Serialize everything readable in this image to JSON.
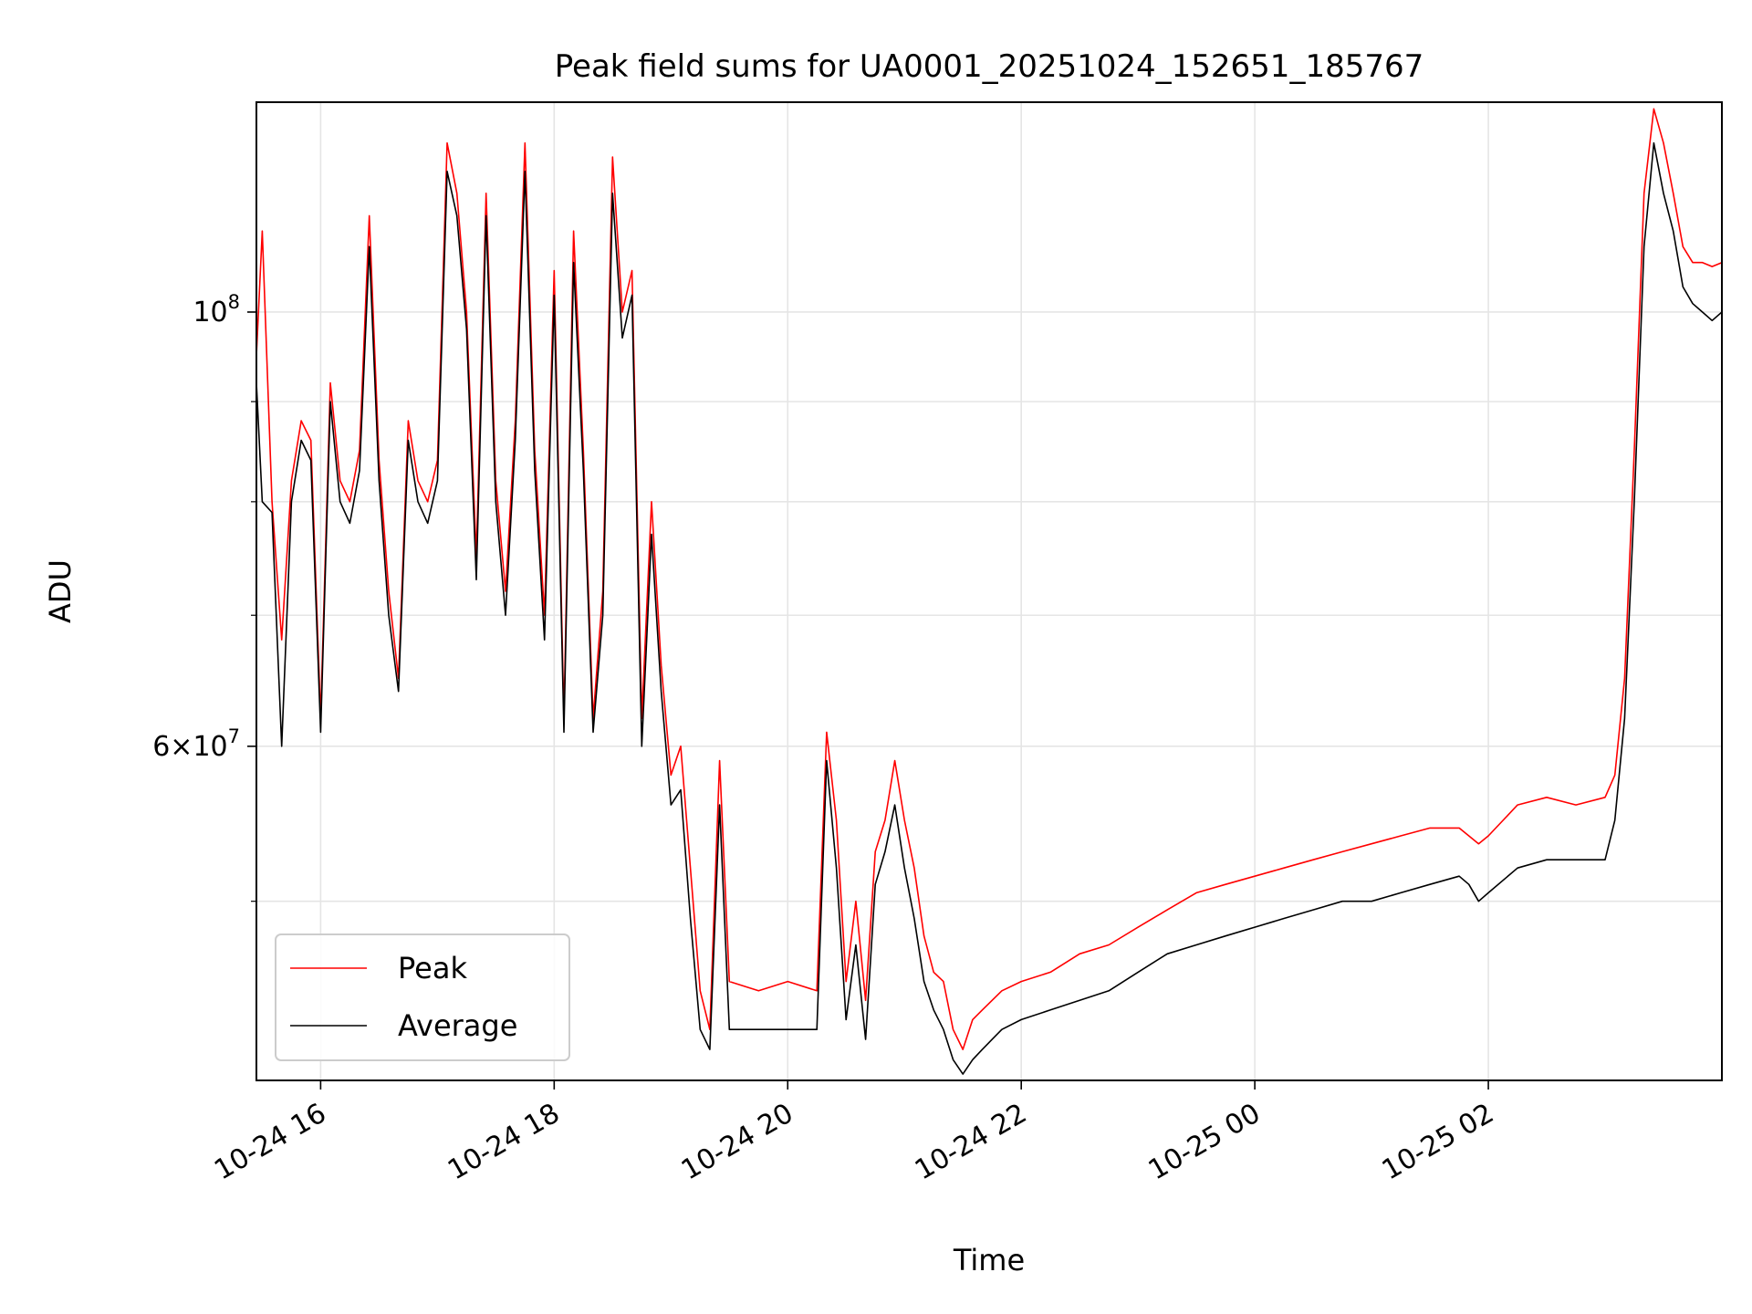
{
  "chart_data": {
    "type": "line",
    "title": "Peak field sums for UA0001_20251024_152651_185767",
    "xlabel": "Time",
    "ylabel": "ADU",
    "y_scale": "log",
    "grid": true,
    "legend_position": "bottom-left",
    "xlim": [
      "2025-10-24 15:27",
      "2025-10-25 04:00"
    ],
    "ylim": [
      40500000,
      128000000
    ],
    "x_ticks": [
      {
        "value": "2025-10-24 16:00",
        "label": "10-24 16"
      },
      {
        "value": "2025-10-24 18:00",
        "label": "10-24 18"
      },
      {
        "value": "2025-10-24 20:00",
        "label": "10-24 20"
      },
      {
        "value": "2025-10-24 22:00",
        "label": "10-24 22"
      },
      {
        "value": "2025-10-25 00:00",
        "label": "10-25 00"
      },
      {
        "value": "2025-10-25 02:00",
        "label": "10-25 02"
      }
    ],
    "y_ticks_labeled": [
      {
        "value": 60000000,
        "label_base": "6×10",
        "label_exp": "7"
      },
      {
        "value": 100000000,
        "label_base": "10",
        "label_exp": "8"
      }
    ],
    "y_minor_ticks": [
      50000000,
      70000000,
      80000000,
      90000000
    ],
    "colors": {
      "peak": "#ff0000",
      "average": "#000000",
      "grid": "#e5e5e5"
    },
    "series": [
      {
        "name": "Peak",
        "color": "#ff0000",
        "x": [
          "2025-10-24 15:27",
          "2025-10-24 15:30",
          "2025-10-24 15:35",
          "2025-10-24 15:40",
          "2025-10-24 15:45",
          "2025-10-24 15:50",
          "2025-10-24 15:55",
          "2025-10-24 16:00",
          "2025-10-24 16:05",
          "2025-10-24 16:10",
          "2025-10-24 16:15",
          "2025-10-24 16:20",
          "2025-10-24 16:25",
          "2025-10-24 16:30",
          "2025-10-24 16:35",
          "2025-10-24 16:40",
          "2025-10-24 16:45",
          "2025-10-24 16:50",
          "2025-10-24 16:55",
          "2025-10-24 17:00",
          "2025-10-24 17:05",
          "2025-10-24 17:10",
          "2025-10-24 17:15",
          "2025-10-24 17:20",
          "2025-10-24 17:25",
          "2025-10-24 17:30",
          "2025-10-24 17:35",
          "2025-10-24 17:40",
          "2025-10-24 17:45",
          "2025-10-24 17:50",
          "2025-10-24 17:55",
          "2025-10-24 18:00",
          "2025-10-24 18:05",
          "2025-10-24 18:10",
          "2025-10-24 18:15",
          "2025-10-24 18:20",
          "2025-10-24 18:25",
          "2025-10-24 18:30",
          "2025-10-24 18:35",
          "2025-10-24 18:40",
          "2025-10-24 18:45",
          "2025-10-24 18:50",
          "2025-10-24 18:55",
          "2025-10-24 19:00",
          "2025-10-24 19:05",
          "2025-10-24 19:10",
          "2025-10-24 19:15",
          "2025-10-24 19:20",
          "2025-10-24 19:25",
          "2025-10-24 19:30",
          "2025-10-24 19:45",
          "2025-10-24 20:00",
          "2025-10-24 20:15",
          "2025-10-24 20:20",
          "2025-10-24 20:25",
          "2025-10-24 20:30",
          "2025-10-24 20:35",
          "2025-10-24 20:40",
          "2025-10-24 20:45",
          "2025-10-24 20:50",
          "2025-10-24 20:55",
          "2025-10-24 21:00",
          "2025-10-24 21:05",
          "2025-10-24 21:10",
          "2025-10-24 21:15",
          "2025-10-24 21:20",
          "2025-10-24 21:25",
          "2025-10-24 21:30",
          "2025-10-24 21:35",
          "2025-10-24 21:40",
          "2025-10-24 21:45",
          "2025-10-24 21:50",
          "2025-10-24 22:00",
          "2025-10-24 22:15",
          "2025-10-24 22:30",
          "2025-10-24 22:45",
          "2025-10-24 23:00",
          "2025-10-24 23:15",
          "2025-10-24 23:30",
          "2025-10-24 23:45",
          "2025-10-25 00:00",
          "2025-10-25 00:15",
          "2025-10-25 00:30",
          "2025-10-25 00:45",
          "2025-10-25 01:00",
          "2025-10-25 01:15",
          "2025-10-25 01:30",
          "2025-10-25 01:45",
          "2025-10-25 01:50",
          "2025-10-25 01:55",
          "2025-10-25 02:00",
          "2025-10-25 02:15",
          "2025-10-25 02:30",
          "2025-10-25 02:45",
          "2025-10-25 03:00",
          "2025-10-25 03:05",
          "2025-10-25 03:10",
          "2025-10-25 03:15",
          "2025-10-25 03:20",
          "2025-10-25 03:25",
          "2025-10-25 03:30",
          "2025-10-25 03:35",
          "2025-10-25 03:40",
          "2025-10-25 03:45",
          "2025-10-25 03:50",
          "2025-10-25 03:55",
          "2025-10-25 04:00"
        ],
        "y": [
          95000000,
          110000000,
          80000000,
          68000000,
          82000000,
          88000000,
          86000000,
          62000000,
          92000000,
          82000000,
          80000000,
          85000000,
          112000000,
          84000000,
          72000000,
          65000000,
          88000000,
          82000000,
          80000000,
          84000000,
          122000000,
          115000000,
          100000000,
          75000000,
          115000000,
          82000000,
          72000000,
          88000000,
          122000000,
          85000000,
          70000000,
          105000000,
          62000000,
          110000000,
          85000000,
          62000000,
          72000000,
          120000000,
          100000000,
          105000000,
          62000000,
          80000000,
          66000000,
          58000000,
          60000000,
          52000000,
          45000000,
          43000000,
          59000000,
          45500000,
          45000000,
          45500000,
          45000000,
          61000000,
          55000000,
          45500000,
          50000000,
          44500000,
          53000000,
          55000000,
          59000000,
          55000000,
          52000000,
          48000000,
          46000000,
          45500000,
          43000000,
          42000000,
          43500000,
          44000000,
          44500000,
          45000000,
          45500000,
          46000000,
          47000000,
          47500000,
          48500000,
          49500000,
          50500000,
          51000000,
          51500000,
          52000000,
          52500000,
          53000000,
          53500000,
          54000000,
          54500000,
          54500000,
          54000000,
          53500000,
          54000000,
          56000000,
          56500000,
          56000000,
          56500000,
          58000000,
          65000000,
          85000000,
          115000000,
          127000000,
          122000000,
          115000000,
          108000000,
          106000000,
          106000000,
          105500000,
          106000000
        ],
        "annotations": []
      },
      {
        "name": "Average",
        "color": "#000000",
        "x": [
          "2025-10-24 15:27",
          "2025-10-24 15:30",
          "2025-10-24 15:35",
          "2025-10-24 15:40",
          "2025-10-24 15:45",
          "2025-10-24 15:50",
          "2025-10-24 15:55",
          "2025-10-24 16:00",
          "2025-10-24 16:05",
          "2025-10-24 16:10",
          "2025-10-24 16:15",
          "2025-10-24 16:20",
          "2025-10-24 16:25",
          "2025-10-24 16:30",
          "2025-10-24 16:35",
          "2025-10-24 16:40",
          "2025-10-24 16:45",
          "2025-10-24 16:50",
          "2025-10-24 16:55",
          "2025-10-24 17:00",
          "2025-10-24 17:05",
          "2025-10-24 17:10",
          "2025-10-24 17:15",
          "2025-10-24 17:20",
          "2025-10-24 17:25",
          "2025-10-24 17:30",
          "2025-10-24 17:35",
          "2025-10-24 17:40",
          "2025-10-24 17:45",
          "2025-10-24 17:50",
          "2025-10-24 17:55",
          "2025-10-24 18:00",
          "2025-10-24 18:05",
          "2025-10-24 18:10",
          "2025-10-24 18:15",
          "2025-10-24 18:20",
          "2025-10-24 18:25",
          "2025-10-24 18:30",
          "2025-10-24 18:35",
          "2025-10-24 18:40",
          "2025-10-24 18:45",
          "2025-10-24 18:50",
          "2025-10-24 18:55",
          "2025-10-24 19:00",
          "2025-10-24 19:05",
          "2025-10-24 19:10",
          "2025-10-24 19:15",
          "2025-10-24 19:20",
          "2025-10-24 19:25",
          "2025-10-24 19:30",
          "2025-10-24 19:45",
          "2025-10-24 20:00",
          "2025-10-24 20:15",
          "2025-10-24 20:20",
          "2025-10-24 20:25",
          "2025-10-24 20:30",
          "2025-10-24 20:35",
          "2025-10-24 20:40",
          "2025-10-24 20:45",
          "2025-10-24 20:50",
          "2025-10-24 20:55",
          "2025-10-24 21:00",
          "2025-10-24 21:05",
          "2025-10-24 21:10",
          "2025-10-24 21:15",
          "2025-10-24 21:20",
          "2025-10-24 21:25",
          "2025-10-24 21:30",
          "2025-10-24 21:35",
          "2025-10-24 21:40",
          "2025-10-24 21:45",
          "2025-10-24 21:50",
          "2025-10-24 22:00",
          "2025-10-24 22:15",
          "2025-10-24 22:30",
          "2025-10-24 22:45",
          "2025-10-24 23:00",
          "2025-10-24 23:15",
          "2025-10-24 23:30",
          "2025-10-24 23:45",
          "2025-10-25 00:00",
          "2025-10-25 00:15",
          "2025-10-25 00:30",
          "2025-10-25 00:45",
          "2025-10-25 01:00",
          "2025-10-25 01:15",
          "2025-10-25 01:30",
          "2025-10-25 01:45",
          "2025-10-25 01:50",
          "2025-10-25 01:55",
          "2025-10-25 02:00",
          "2025-10-25 02:15",
          "2025-10-25 02:30",
          "2025-10-25 02:45",
          "2025-10-25 03:00",
          "2025-10-25 03:05",
          "2025-10-25 03:10",
          "2025-10-25 03:15",
          "2025-10-25 03:20",
          "2025-10-25 03:25",
          "2025-10-25 03:30",
          "2025-10-25 03:35",
          "2025-10-25 03:40",
          "2025-10-25 03:45",
          "2025-10-25 03:50",
          "2025-10-25 03:55",
          "2025-10-25 04:00"
        ],
        "y": [
          92000000,
          80000000,
          79000000,
          60000000,
          80000000,
          86000000,
          84000000,
          61000000,
          90000000,
          80000000,
          78000000,
          83000000,
          108000000,
          82000000,
          70000000,
          64000000,
          86000000,
          80000000,
          78000000,
          82000000,
          118000000,
          112000000,
          98000000,
          73000000,
          112000000,
          80000000,
          70000000,
          86000000,
          118000000,
          83000000,
          68000000,
          102000000,
          61000000,
          106000000,
          83000000,
          61000000,
          70000000,
          115000000,
          97000000,
          102000000,
          60000000,
          77000000,
          64000000,
          56000000,
          57000000,
          49000000,
          43000000,
          42000000,
          56000000,
          43000000,
          43000000,
          43000000,
          43000000,
          59000000,
          52000000,
          43500000,
          47500000,
          42500000,
          51000000,
          53000000,
          56000000,
          52000000,
          49000000,
          45500000,
          44000000,
          43000000,
          41500000,
          40800000,
          41500000,
          42000000,
          42500000,
          43000000,
          43500000,
          44000000,
          44500000,
          45000000,
          46000000,
          47000000,
          47500000,
          48000000,
          48500000,
          49000000,
          49500000,
          50000000,
          50000000,
          50500000,
          51000000,
          51500000,
          51000000,
          50000000,
          50500000,
          52000000,
          52500000,
          52500000,
          52500000,
          55000000,
          62000000,
          80000000,
          108000000,
          122000000,
          115000000,
          110000000,
          103000000,
          101000000,
          100000000,
          99000000,
          100000000
        ],
        "annotations": []
      }
    ]
  }
}
